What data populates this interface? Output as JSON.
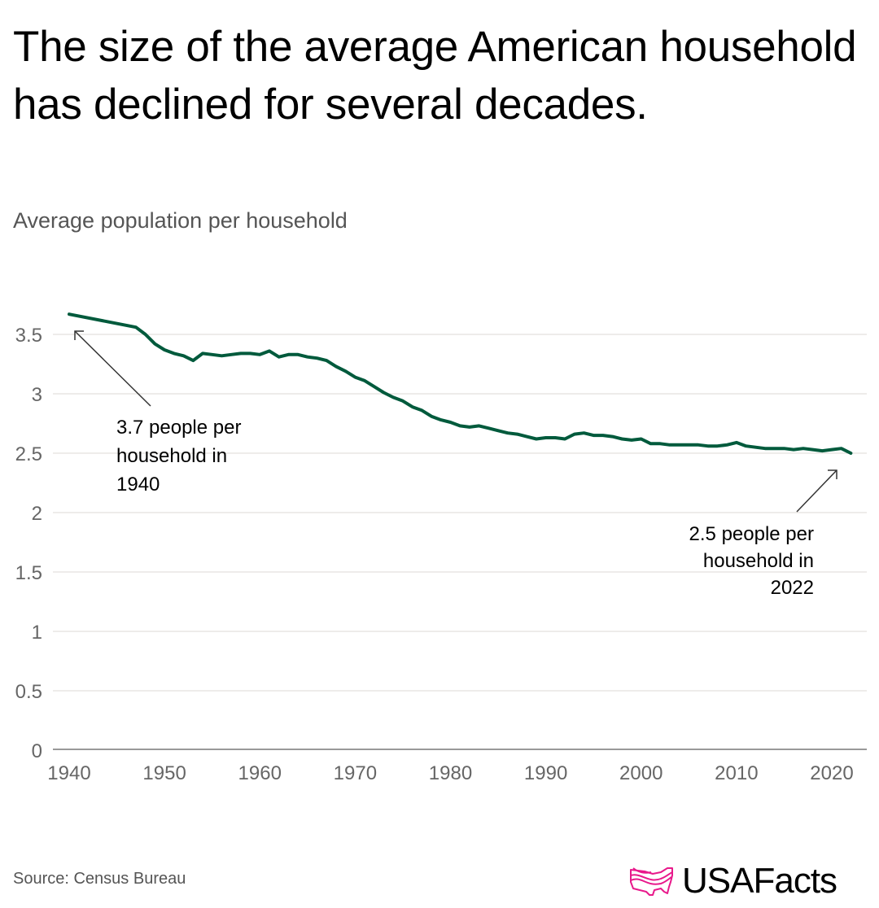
{
  "title": "The size of the average American household has declined for several decades.",
  "subtitle": "Average population per household",
  "source": "Source: Census Bureau",
  "logo": {
    "text": "USAFacts",
    "accent": "#e8198b"
  },
  "colors": {
    "line": "#005a3c",
    "grid": "#dddad4",
    "axis": "#999999"
  },
  "chart_data": {
    "type": "line",
    "title": "The size of the average American household has declined for several decades.",
    "subtitle": "Average population per household",
    "xlabel": "",
    "ylabel": "",
    "xlim": [
      1940,
      2022
    ],
    "ylim": [
      0,
      3.7
    ],
    "grid": true,
    "x_ticks": [
      1940,
      1950,
      1960,
      1970,
      1980,
      1990,
      2000,
      2010,
      2020
    ],
    "x_tick_labels": [
      "1940",
      "1950",
      "1960",
      "1970",
      "1980",
      "1990",
      "2000",
      "2010",
      "2020"
    ],
    "y_ticks": [
      0,
      0.5,
      1,
      1.5,
      2,
      2.5,
      3,
      3.5
    ],
    "y_tick_labels": [
      "0",
      "0.5",
      "1",
      "1.5",
      "2",
      "2.5",
      "3",
      "3.5"
    ],
    "series": [
      {
        "name": "Average population per household",
        "x": [
          1940,
          1947,
          1948,
          1949,
          1950,
          1951,
          1952,
          1953,
          1954,
          1955,
          1956,
          1957,
          1958,
          1959,
          1960,
          1961,
          1962,
          1963,
          1964,
          1965,
          1966,
          1967,
          1968,
          1969,
          1970,
          1971,
          1972,
          1973,
          1974,
          1975,
          1976,
          1977,
          1978,
          1979,
          1980,
          1981,
          1982,
          1983,
          1984,
          1985,
          1986,
          1987,
          1988,
          1989,
          1990,
          1991,
          1992,
          1993,
          1994,
          1995,
          1996,
          1997,
          1998,
          1999,
          2000,
          2001,
          2002,
          2003,
          2004,
          2005,
          2006,
          2007,
          2008,
          2009,
          2010,
          2011,
          2012,
          2013,
          2014,
          2015,
          2016,
          2017,
          2018,
          2019,
          2020,
          2021,
          2022
        ],
        "values": [
          3.67,
          3.56,
          3.5,
          3.42,
          3.37,
          3.34,
          3.32,
          3.28,
          3.34,
          3.33,
          3.32,
          3.33,
          3.34,
          3.34,
          3.33,
          3.36,
          3.31,
          3.33,
          3.33,
          3.31,
          3.3,
          3.28,
          3.23,
          3.19,
          3.14,
          3.11,
          3.06,
          3.01,
          2.97,
          2.94,
          2.89,
          2.86,
          2.81,
          2.78,
          2.76,
          2.73,
          2.72,
          2.73,
          2.71,
          2.69,
          2.67,
          2.66,
          2.64,
          2.62,
          2.63,
          2.63,
          2.62,
          2.66,
          2.67,
          2.65,
          2.65,
          2.64,
          2.62,
          2.61,
          2.62,
          2.58,
          2.58,
          2.57,
          2.57,
          2.57,
          2.57,
          2.56,
          2.56,
          2.57,
          2.59,
          2.56,
          2.55,
          2.54,
          2.54,
          2.54,
          2.53,
          2.54,
          2.53,
          2.52,
          2.53,
          2.54,
          2.5
        ]
      }
    ],
    "annotations": [
      {
        "lines": [
          "3.7 people per",
          "household in",
          "1940"
        ],
        "target_x": 1940,
        "target_y": 3.7,
        "align": "left"
      },
      {
        "lines": [
          "2.5 people per",
          "household in",
          "2022"
        ],
        "target_x": 2022,
        "target_y": 2.5,
        "align": "right"
      }
    ]
  }
}
